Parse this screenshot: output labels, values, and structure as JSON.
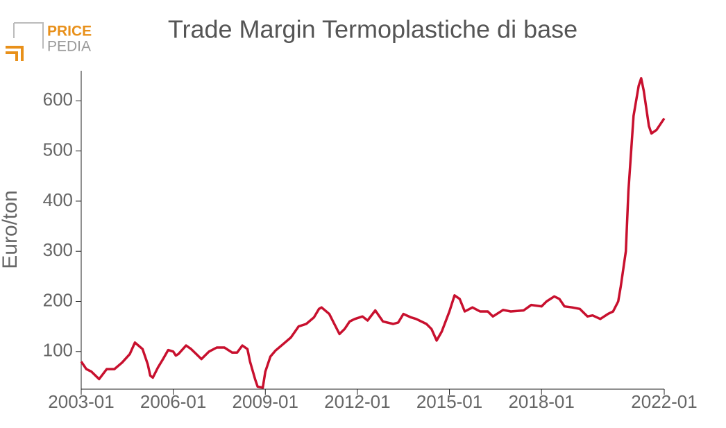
{
  "logo": {
    "top": "PRICE",
    "bottom": "PEDIA"
  },
  "chart_data": {
    "type": "line",
    "title": "Trade Margin Termoplastiche di base",
    "y_label": "Euro/ton",
    "x": [
      "2003-01",
      "2003-03",
      "2003-05",
      "2003-08",
      "2003-11",
      "2004-02",
      "2004-05",
      "2004-08",
      "2004-10",
      "2005-01",
      "2005-03",
      "2005-04",
      "2005-05",
      "2005-07",
      "2005-09",
      "2005-11",
      "2006-01",
      "2006-02",
      "2006-03",
      "2006-06",
      "2006-08",
      "2006-10",
      "2006-12",
      "2007-03",
      "2007-06",
      "2007-09",
      "2007-12",
      "2008-02",
      "2008-04",
      "2008-06",
      "2008-07",
      "2008-09",
      "2008-10",
      "2008-12",
      "2009-01",
      "2009-03",
      "2009-05",
      "2009-08",
      "2009-11",
      "2010-02",
      "2010-05",
      "2010-08",
      "2010-10",
      "2010-11",
      "2011-02",
      "2011-04",
      "2011-06",
      "2011-08",
      "2011-10",
      "2011-12",
      "2012-03",
      "2012-05",
      "2012-08",
      "2012-11",
      "2013-03",
      "2013-05",
      "2013-07",
      "2013-10",
      "2013-12",
      "2014-04",
      "2014-06",
      "2014-08",
      "2014-10",
      "2015-01",
      "2015-03",
      "2015-05",
      "2015-07",
      "2015-10",
      "2016-01",
      "2016-04",
      "2016-06",
      "2016-10",
      "2017-01",
      "2017-06",
      "2017-09",
      "2018-01",
      "2018-03",
      "2018-06",
      "2018-08",
      "2018-10",
      "2019-01",
      "2019-04",
      "2019-05",
      "2019-07",
      "2019-09",
      "2019-12",
      "2020-03",
      "2020-05",
      "2020-07",
      "2020-08",
      "2020-10",
      "2020-11",
      "2021-01",
      "2021-03",
      "2021-04",
      "2021-05",
      "2021-07",
      "2021-08",
      "2021-10",
      "2022-01"
    ],
    "series": [
      {
        "name": "Trade Margin",
        "color": "#c8102e",
        "values": [
          80,
          65,
          60,
          45,
          65,
          65,
          78,
          95,
          118,
          105,
          75,
          52,
          48,
          68,
          85,
          103,
          100,
          92,
          95,
          112,
          105,
          95,
          85,
          100,
          108,
          108,
          98,
          98,
          112,
          105,
          80,
          45,
          30,
          28,
          60,
          90,
          102,
          115,
          128,
          150,
          155,
          168,
          185,
          188,
          175,
          155,
          135,
          145,
          160,
          165,
          170,
          162,
          182,
          160,
          155,
          158,
          175,
          168,
          165,
          155,
          145,
          122,
          140,
          180,
          212,
          205,
          180,
          188,
          180,
          180,
          170,
          183,
          180,
          182,
          193,
          190,
          200,
          210,
          205,
          190,
          188,
          185,
          180,
          170,
          172,
          165,
          175,
          180,
          200,
          230,
          300,
          420,
          570,
          630,
          645,
          620,
          550,
          535,
          542,
          565
        ]
      }
    ],
    "xlim": [
      "2003-01",
      "2022-01"
    ],
    "xticks": [
      "2003-01",
      "2006-01",
      "2009-01",
      "2012-01",
      "2015-01",
      "2018-01",
      "2022-01"
    ],
    "ylim": [
      25,
      660
    ],
    "yticks": [
      100,
      200,
      300,
      400,
      500,
      600
    ],
    "grid": false
  }
}
